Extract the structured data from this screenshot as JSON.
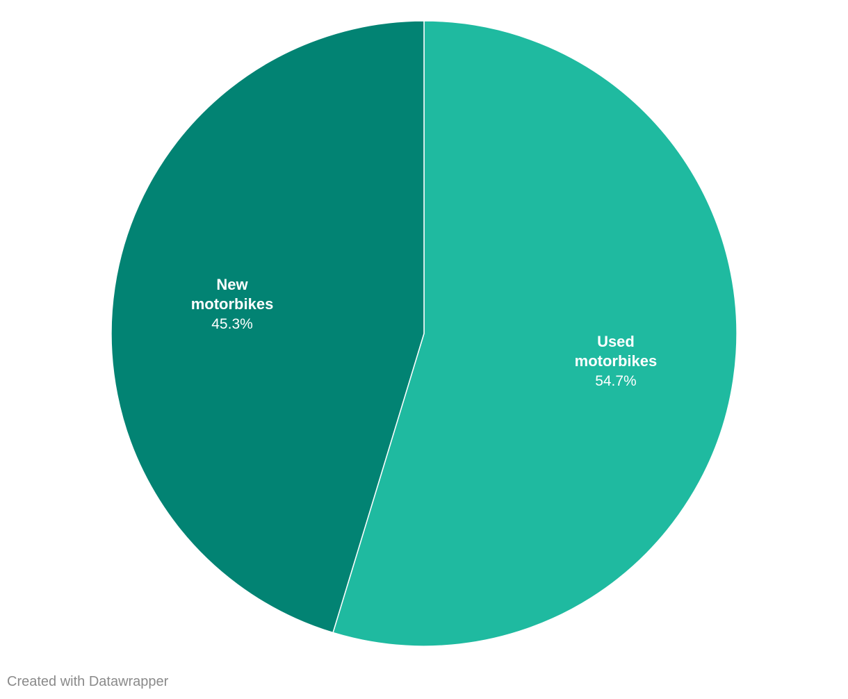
{
  "chart_data": {
    "type": "pie",
    "title": "",
    "slices": [
      {
        "label": "Used motorbikes",
        "label_lines": [
          "Used",
          "motorbikes"
        ],
        "value": 54.7,
        "display": "54.7%",
        "color": "#1fbaa0"
      },
      {
        "label": "New motorbikes",
        "label_lines": [
          "New",
          "motorbikes"
        ],
        "value": 45.3,
        "display": "45.3%",
        "color": "#028373"
      }
    ],
    "start": "12 o'clock",
    "direction": "clockwise",
    "legend": "none",
    "labels": "inside slices"
  },
  "footer": {
    "credit": "Created with Datawrapper"
  }
}
